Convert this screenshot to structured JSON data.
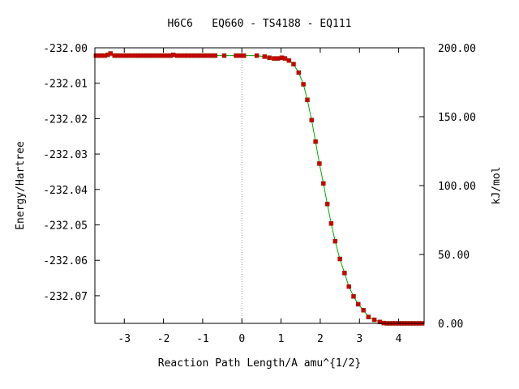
{
  "chart_data": {
    "type": "line",
    "title": "H6C6   EQ660 - TS4188 - EQ111",
    "xlabel": "Reaction Path Length/A amu^{1/2}",
    "ylabel": "Energy/Hartree",
    "y2label": "kJ/mol",
    "xlim": [
      -3.75,
      4.65
    ],
    "ylim": [
      -232.0778,
      -232.0
    ],
    "xticks": [
      "-3",
      "-2",
      "-1",
      "0",
      "1",
      "2",
      "3",
      "4"
    ],
    "xtick_values": [
      -3,
      -2,
      -1,
      0,
      1,
      2,
      3,
      4
    ],
    "yticks": [
      "-232.00",
      "-232.01",
      "-232.02",
      "-232.03",
      "-232.04",
      "-232.05",
      "-232.06",
      "-232.07"
    ],
    "ytick_values": [
      -232.0,
      -232.01,
      -232.02,
      -232.03,
      -232.04,
      -232.05,
      -232.06,
      -232.07
    ],
    "y2ticks": [
      "200.00",
      "150.00",
      "100.00",
      "50.00",
      "0.00"
    ],
    "y2tick_values": [
      200,
      150,
      100,
      50,
      0
    ],
    "y2lim": [
      0,
      200.0
    ],
    "ts_x": 0,
    "colors": {
      "line": "#00aa00",
      "marker": "#cc0000",
      "ts_line": "#999999"
    },
    "series": [
      {
        "x": [
          -3.72,
          -3.65,
          -3.58,
          -3.5,
          -3.42,
          -3.35,
          -3.25,
          -3.18,
          -3.1,
          -3.02,
          -2.95,
          -2.88,
          -2.8,
          -2.72,
          -2.65,
          -2.58,
          -2.5,
          -2.42,
          -2.35,
          -2.28,
          -2.2,
          -2.12,
          -2.05,
          -1.97,
          -1.9,
          -1.82,
          -1.75,
          -1.65,
          -1.55,
          -1.45,
          -1.38,
          -1.28,
          -1.2,
          -1.12,
          -1.05,
          -0.97,
          -0.9,
          -0.82,
          -0.75,
          -0.68,
          -0.45,
          -0.15,
          -0.05,
          0.05,
          0.38,
          0.58,
          0.7,
          0.82,
          0.92,
          1.02,
          1.1,
          1.2,
          1.32,
          1.45,
          1.57,
          1.67,
          1.78,
          1.88,
          1.98,
          2.08,
          2.18,
          2.28,
          2.38,
          2.5,
          2.62,
          2.73,
          2.85,
          2.97,
          3.1,
          3.23,
          3.38,
          3.52,
          3.62,
          3.7,
          3.78,
          3.85,
          3.92,
          4.0,
          4.08,
          4.15,
          4.22,
          4.3,
          4.37,
          4.45,
          4.52,
          4.6
        ],
        "y": [
          -232.0022,
          -232.0022,
          -232.0022,
          -232.0022,
          -232.002,
          -232.0016,
          -232.0022,
          -232.0022,
          -232.0022,
          -232.0022,
          -232.0022,
          -232.0022,
          -232.0022,
          -232.0022,
          -232.0022,
          -232.0022,
          -232.0022,
          -232.0022,
          -232.0022,
          -232.0022,
          -232.0022,
          -232.0022,
          -232.0022,
          -232.0022,
          -232.0022,
          -232.0022,
          -232.002,
          -232.0022,
          -232.0022,
          -232.0022,
          -232.0022,
          -232.0022,
          -232.0022,
          -232.0022,
          -232.0022,
          -232.0022,
          -232.0022,
          -232.0022,
          -232.0022,
          -232.0022,
          -232.0022,
          -232.0022,
          -232.0022,
          -232.0022,
          -232.0022,
          -232.0025,
          -232.0028,
          -232.003,
          -232.003,
          -232.0028,
          -232.003,
          -232.0036,
          -232.0046,
          -232.007,
          -232.0103,
          -232.0147,
          -232.0204,
          -232.0265,
          -232.0327,
          -232.0383,
          -232.0441,
          -232.0496,
          -232.0546,
          -232.0596,
          -232.0636,
          -232.0674,
          -232.0702,
          -232.0724,
          -232.0741,
          -232.076,
          -232.0768,
          -232.0774,
          -232.0777,
          -232.0778,
          -232.0778,
          -232.0778,
          -232.0778,
          -232.0778,
          -232.0778,
          -232.0778,
          -232.0778,
          -232.0778,
          -232.0778,
          -232.0778,
          -232.0778,
          -232.0778
        ]
      }
    ]
  }
}
